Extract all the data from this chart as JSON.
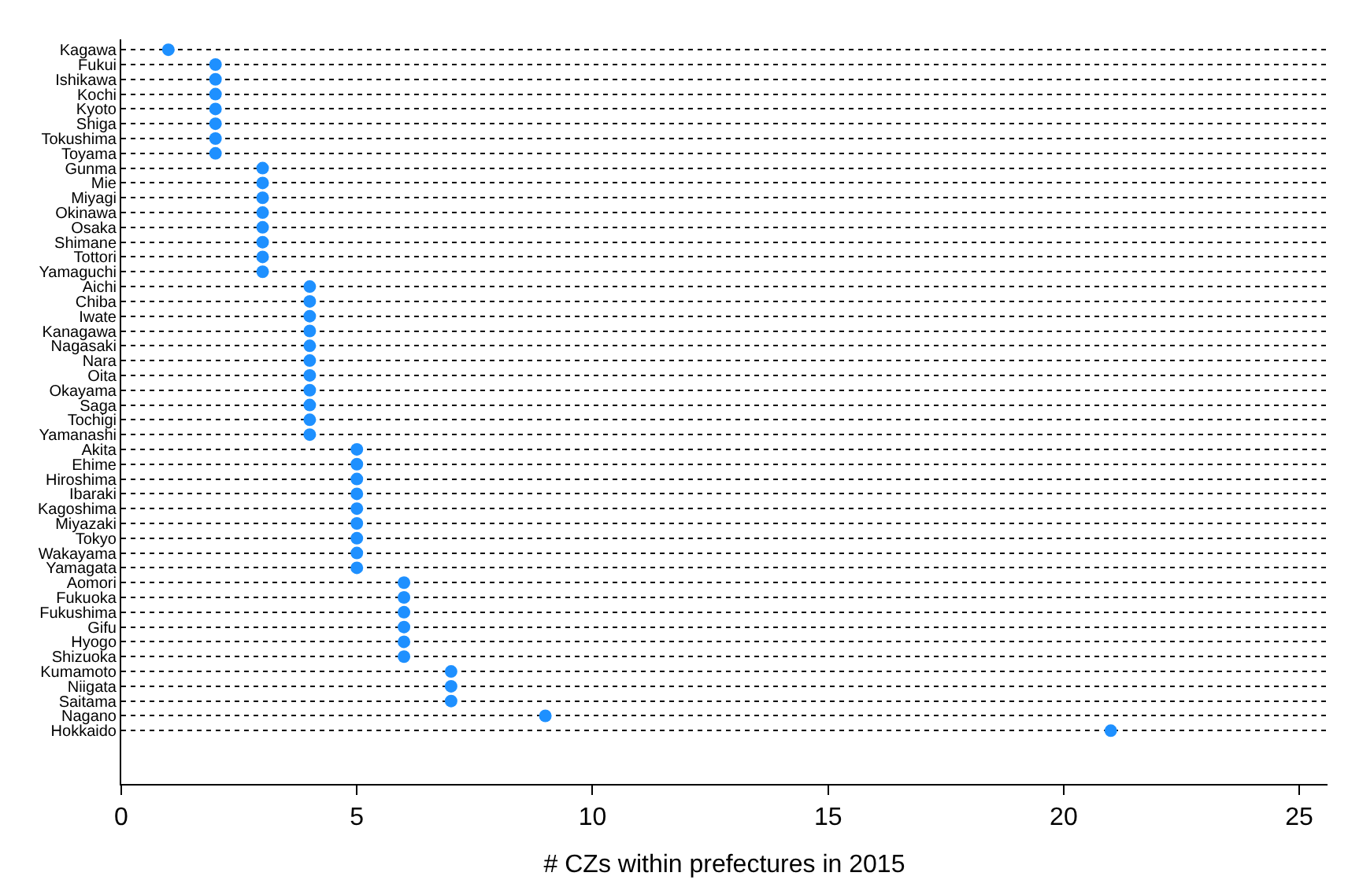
{
  "chart_data": {
    "type": "scatter",
    "orientation": "horizontal",
    "xlabel": "# CZs within prefectures in 2015",
    "categories": [
      "Kagawa",
      "Fukui",
      "Ishikawa",
      "Kochi",
      "Kyoto",
      "Shiga",
      "Tokushima",
      "Toyama",
      "Gunma",
      "Mie",
      "Miyagi",
      "Okinawa",
      "Osaka",
      "Shimane",
      "Tottori",
      "Yamaguchi",
      "Aichi",
      "Chiba",
      "Iwate",
      "Kanagawa",
      "Nagasaki",
      "Nara",
      "Oita",
      "Okayama",
      "Saga",
      "Tochigi",
      "Yamanashi",
      "Akita",
      "Ehime",
      "Hiroshima",
      "Ibaraki",
      "Kagoshima",
      "Miyazaki",
      "Tokyo",
      "Wakayama",
      "Yamagata",
      "Aomori",
      "Fukuoka",
      "Fukushima",
      "Gifu",
      "Hyogo",
      "Shizuoka",
      "Kumamoto",
      "Niigata",
      "Saitama",
      "Nagano",
      "Hokkaido"
    ],
    "series": [
      {
        "color": "#1e90ff",
        "values": [
          1,
          2,
          2,
          2,
          2,
          2,
          2,
          2,
          3,
          3,
          3,
          3,
          3,
          3,
          3,
          3,
          4,
          4,
          4,
          4,
          4,
          4,
          4,
          4,
          4,
          4,
          4,
          5,
          5,
          5,
          5,
          5,
          5,
          5,
          5,
          5,
          6,
          6,
          6,
          6,
          6,
          6,
          7,
          7,
          7,
          9,
          21
        ]
      }
    ],
    "xlim": [
      0,
      25.6
    ],
    "xticks": [
      0,
      5,
      10,
      15,
      20,
      25
    ],
    "grid": "y",
    "line_style": "dotted",
    "marker": "circle"
  }
}
